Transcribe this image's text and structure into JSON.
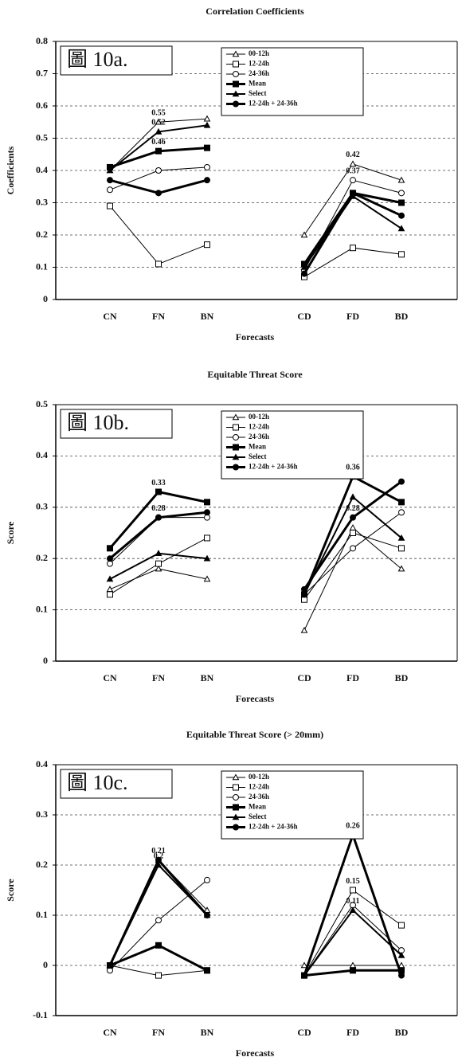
{
  "chart_data": [
    {
      "type": "line",
      "title": "Correlation Coefficients",
      "panel_label": "圖 10a.",
      "xlabel": "Forecasts",
      "ylabel": "Coefficients",
      "categories": [
        "CN",
        "FN",
        "BN",
        null,
        "CD",
        "FD",
        "BD"
      ],
      "ylim": [
        0,
        0.8
      ],
      "yticks": [
        0,
        0.1,
        0.2,
        0.3,
        0.4,
        0.5,
        0.6,
        0.7,
        0.8
      ],
      "grid": true,
      "legend": "upper center",
      "series": [
        {
          "name": "00-12h",
          "color": "#000000",
          "marker": "triangle-open",
          "linewidth": 1,
          "values": [
            0.4,
            0.55,
            0.56,
            null,
            0.2,
            0.42,
            0.37
          ]
        },
        {
          "name": "12-24h",
          "color": "#000000",
          "marker": "square-open",
          "linewidth": 1,
          "values": [
            0.29,
            0.11,
            0.17,
            null,
            0.07,
            0.16,
            0.14
          ]
        },
        {
          "name": "24-36h",
          "color": "#000000",
          "marker": "circle-open",
          "linewidth": 1,
          "values": [
            0.34,
            0.4,
            0.41,
            null,
            0.09,
            0.37,
            0.33
          ]
        },
        {
          "name": "Mean",
          "color": "#000000",
          "marker": "square-filled",
          "linewidth": 3,
          "values": [
            0.41,
            0.46,
            0.47,
            null,
            0.11,
            0.33,
            0.3
          ]
        },
        {
          "name": "Select",
          "color": "#000000",
          "marker": "triangle-filled",
          "linewidth": 2,
          "values": [
            0.4,
            0.52,
            0.54,
            null,
            0.1,
            0.32,
            0.22
          ]
        },
        {
          "name": "12-24h + 24-36h",
          "color": "#000000",
          "marker": "circle-filled",
          "linewidth": 3,
          "values": [
            0.37,
            0.33,
            0.37,
            null,
            0.08,
            0.33,
            0.26
          ]
        }
      ],
      "annotations": [
        {
          "text": "0.55",
          "series": "00-12h",
          "category": "FN"
        },
        {
          "text": "0.52",
          "series": "Select",
          "category": "FN"
        },
        {
          "text": "0.46",
          "series": "Mean",
          "category": "FN"
        },
        {
          "text": "0.42",
          "series": "00-12h",
          "category": "FD"
        },
        {
          "text": "0.37",
          "series": "24-36h",
          "category": "FD"
        }
      ]
    },
    {
      "type": "line",
      "title": "Equitable Threat Score",
      "panel_label": "圖 10b.",
      "xlabel": "Forecasts",
      "ylabel": "Score",
      "categories": [
        "CN",
        "FN",
        "BN",
        null,
        "CD",
        "FD",
        "BD"
      ],
      "ylim": [
        0,
        0.5
      ],
      "yticks": [
        0,
        0.1,
        0.2,
        0.3,
        0.4,
        0.5
      ],
      "grid": true,
      "legend": "upper center",
      "series": [
        {
          "name": "00-12h",
          "color": "#000000",
          "marker": "triangle-open",
          "linewidth": 1,
          "values": [
            0.14,
            0.18,
            0.16,
            null,
            0.06,
            0.26,
            0.18
          ]
        },
        {
          "name": "12-24h",
          "color": "#000000",
          "marker": "square-open",
          "linewidth": 1,
          "values": [
            0.13,
            0.19,
            0.24,
            null,
            0.12,
            0.25,
            0.22
          ]
        },
        {
          "name": "24-36h",
          "color": "#000000",
          "marker": "circle-open",
          "linewidth": 1,
          "values": [
            0.19,
            0.28,
            0.28,
            null,
            0.13,
            0.22,
            0.29
          ]
        },
        {
          "name": "Mean",
          "color": "#000000",
          "marker": "square-filled",
          "linewidth": 3,
          "values": [
            0.22,
            0.33,
            0.31,
            null,
            0.13,
            0.36,
            0.31
          ]
        },
        {
          "name": "Select",
          "color": "#000000",
          "marker": "triangle-filled",
          "linewidth": 2,
          "values": [
            0.16,
            0.21,
            0.2,
            null,
            0.13,
            0.32,
            0.24
          ]
        },
        {
          "name": "12-24h + 24-36h",
          "color": "#000000",
          "marker": "circle-filled",
          "linewidth": 3,
          "values": [
            0.2,
            0.28,
            0.29,
            null,
            0.14,
            0.28,
            0.35
          ]
        }
      ],
      "annotations": [
        {
          "text": "0.33",
          "series": "Mean",
          "category": "FN"
        },
        {
          "text": "0.28",
          "series": "24-36h",
          "category": "FN"
        },
        {
          "text": "0.36",
          "series": "Mean",
          "category": "FD"
        },
        {
          "text": "0.28",
          "series": "12-24h + 24-36h",
          "category": "FD"
        }
      ]
    },
    {
      "type": "line",
      "title": "Equitable Threat Score (> 20mm)",
      "panel_label": "圖 10c.",
      "xlabel": "Forecasts",
      "ylabel": "Score",
      "categories": [
        "CN",
        "FN",
        "BN",
        null,
        "CD",
        "FD",
        "BD"
      ],
      "ylim": [
        -0.1,
        0.4
      ],
      "yticks": [
        -0.1,
        0,
        0.1,
        0.2,
        0.3,
        0.4
      ],
      "grid": true,
      "legend": "upper center",
      "series": [
        {
          "name": "00-12h",
          "color": "#000000",
          "marker": "triangle-open",
          "linewidth": 1,
          "values": [
            0,
            0.21,
            0.11,
            null,
            0,
            0,
            0
          ]
        },
        {
          "name": "12-24h",
          "color": "#000000",
          "marker": "square-open",
          "linewidth": 1,
          "values": [
            0,
            -0.02,
            -0.01,
            null,
            -0.02,
            0.15,
            0.08
          ]
        },
        {
          "name": "24-36h",
          "color": "#000000",
          "marker": "circle-open",
          "linewidth": 1,
          "values": [
            -0.01,
            0.09,
            0.17,
            null,
            -0.02,
            0.12,
            0.03
          ]
        },
        {
          "name": "Mean",
          "color": "#000000",
          "marker": "square-filled",
          "linewidth": 3,
          "values": [
            0,
            0.04,
            -0.01,
            null,
            -0.02,
            -0.01,
            -0.01
          ]
        },
        {
          "name": "Select",
          "color": "#000000",
          "marker": "triangle-filled",
          "linewidth": 2,
          "values": [
            0,
            0.2,
            0.1,
            null,
            -0.02,
            0.11,
            0.02
          ]
        },
        {
          "name": "12-24h + 24-36h",
          "color": "#000000",
          "marker": "circle-filled",
          "linewidth": 3,
          "values": [
            0,
            0.21,
            0.1,
            null,
            -0.02,
            0.26,
            -0.02
          ]
        }
      ],
      "annotations": [
        {
          "text": "0.21",
          "series": "00-12h",
          "category": "FN"
        },
        {
          "text": "0.2",
          "series": "Select",
          "category": "FN"
        },
        {
          "text": "0.26",
          "series": "12-24h + 24-36h",
          "category": "FD"
        },
        {
          "text": "0.15",
          "series": "12-24h",
          "category": "FD"
        },
        {
          "text": "0.11",
          "series": "Select",
          "category": "FD"
        }
      ]
    }
  ]
}
